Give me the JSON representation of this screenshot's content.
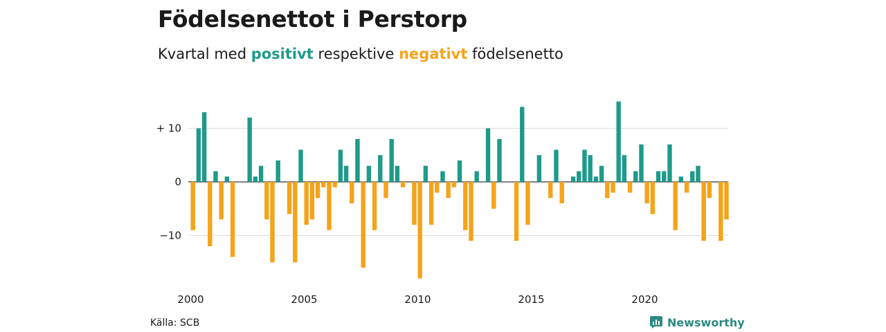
{
  "header": {
    "title": "Födelsenettot i Perstorp",
    "subtitle_prefix": "Kvartal med",
    "subtitle_positive": "positivt",
    "subtitle_middle": "respektive",
    "subtitle_negative": "negativt",
    "subtitle_suffix": "födelsenetto"
  },
  "footer": {
    "source": "Källa: SCB",
    "brand": "Newsworthy"
  },
  "colors": {
    "positive": "#1f9a8a",
    "negative": "#f5a31a",
    "grid": "#dddddd",
    "zero_line": "#333333",
    "brand": "#2b8a82"
  },
  "chart_data": {
    "type": "bar",
    "x_start": "2000 Q1",
    "x_ticks": [
      "2000",
      "2005",
      "2010",
      "2015",
      "2020"
    ],
    "y_ticks": [
      {
        "value": 10,
        "label": "+ 10"
      },
      {
        "value": 0,
        "label": "0"
      },
      {
        "value": -10,
        "label": "−10"
      }
    ],
    "ylim": [
      -18,
      15
    ],
    "grid": true,
    "values": [
      -9,
      10,
      13,
      -12,
      2,
      -7,
      1,
      -14,
      0,
      0,
      12,
      1,
      3,
      -7,
      -15,
      4,
      0,
      -6,
      -15,
      6,
      -8,
      -7,
      -3,
      -1,
      -9,
      -1,
      6,
      3,
      -4,
      8,
      -16,
      3,
      -9,
      5,
      -3,
      8,
      3,
      -1,
      0,
      -8,
      -18,
      3,
      -8,
      -2,
      2,
      -3,
      -1,
      4,
      -9,
      -11,
      2,
      0,
      10,
      -5,
      8,
      0,
      0,
      -11,
      14,
      -8,
      0,
      5,
      0,
      -3,
      6,
      -4,
      0,
      1,
      2,
      6,
      5,
      1,
      3,
      -3,
      -2,
      15,
      5,
      -2,
      2,
      7,
      -4,
      -6,
      2,
      2,
      7,
      -9,
      1,
      -2,
      2,
      3,
      -11,
      -3,
      0,
      -11,
      -7
    ]
  }
}
